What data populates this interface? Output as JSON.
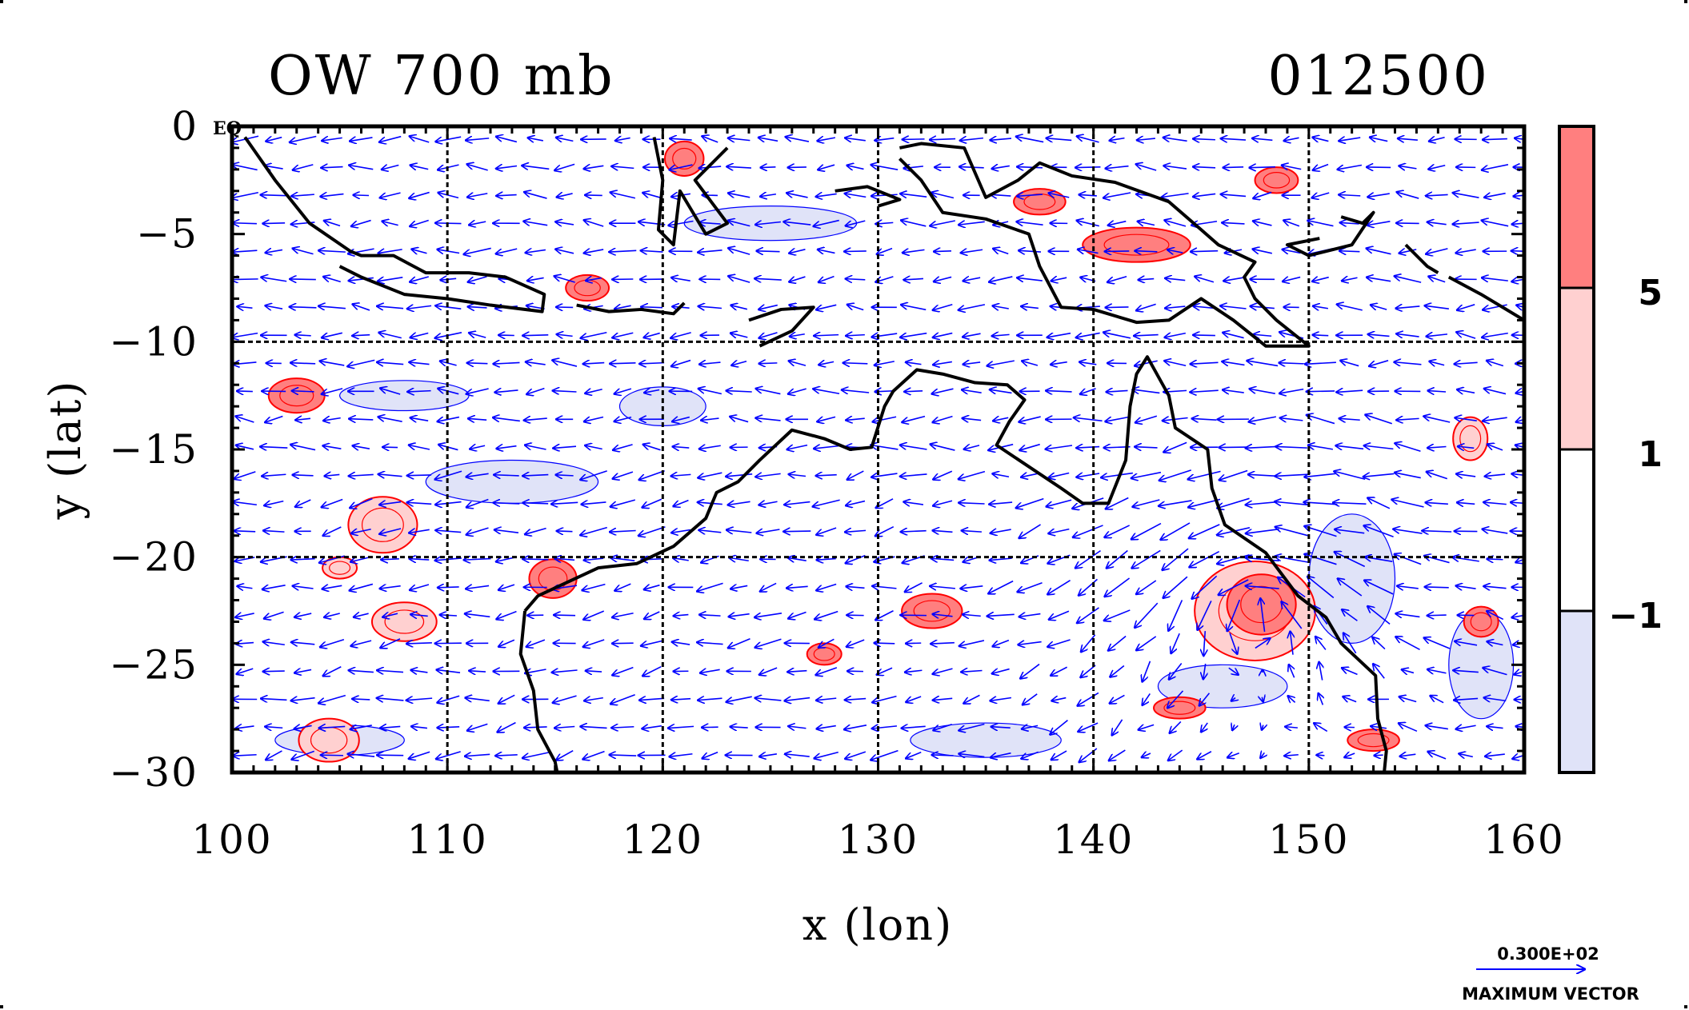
{
  "chart_data": {
    "type": "heatmap",
    "title": "OW 700 mb",
    "time_label": "012500",
    "xlabel": "x (lon)",
    "ylabel": "y (lat)",
    "xlim": [
      100,
      160
    ],
    "ylim": [
      -30,
      0
    ],
    "x_ticks": [
      100,
      110,
      120,
      130,
      140,
      150,
      160
    ],
    "y_ticks": [
      0,
      -5,
      -10,
      -15,
      -20,
      -25,
      -30
    ],
    "x_tick_labels": [
      "100",
      "110",
      "120",
      "130",
      "140",
      "150",
      "160"
    ],
    "y_tick_labels": [
      "0",
      "−5",
      "−10",
      "−15",
      "−20",
      "−25",
      "−30"
    ],
    "gridlines_x": [
      110,
      120,
      130,
      140,
      150
    ],
    "gridlines_y": [
      -10,
      -20
    ],
    "grid": true,
    "corner_label": "EQ",
    "colorbar": {
      "levels": [
        -1,
        1,
        5
      ],
      "labels": [
        "−1",
        "1",
        "5"
      ],
      "colors": [
        "#e0e3f8",
        "#ffffff",
        "#ffd0d0",
        "#ff7f7f"
      ]
    },
    "contour_colors": {
      "positive": "#ff0000",
      "negative": "#0000ff",
      "coast": "#000000"
    },
    "vector_color": "#0000ff",
    "vector_key": {
      "value": "0.300E+02",
      "label": "MAXIMUM VECTOR"
    },
    "positive_regions": [
      {
        "lon": 103,
        "lat": -12.5,
        "rx": 1.3,
        "ry": 0.8,
        "level": 5
      },
      {
        "lon": 104.5,
        "lat": -28.5,
        "rx": 1.4,
        "ry": 1.0,
        "level": 1
      },
      {
        "lon": 107,
        "lat": -18.5,
        "rx": 1.6,
        "ry": 1.3,
        "level": 1
      },
      {
        "lon": 108,
        "lat": -23,
        "rx": 1.5,
        "ry": 0.9,
        "level": 1
      },
      {
        "lon": 105,
        "lat": -20.5,
        "rx": 0.8,
        "ry": 0.5,
        "level": 1
      },
      {
        "lon": 114.9,
        "lat": -21,
        "rx": 1.1,
        "ry": 0.9,
        "level": 5
      },
      {
        "lon": 116.5,
        "lat": -7.5,
        "rx": 1.0,
        "ry": 0.6,
        "level": 5
      },
      {
        "lon": 121,
        "lat": -1.5,
        "rx": 0.9,
        "ry": 0.8,
        "level": 5
      },
      {
        "lon": 127.5,
        "lat": -24.5,
        "rx": 0.8,
        "ry": 0.5,
        "level": 5
      },
      {
        "lon": 132.5,
        "lat": -22.5,
        "rx": 1.4,
        "ry": 0.8,
        "level": 5
      },
      {
        "lon": 137.5,
        "lat": -3.5,
        "rx": 1.2,
        "ry": 0.6,
        "level": 5
      },
      {
        "lon": 142,
        "lat": -5.5,
        "rx": 2.5,
        "ry": 0.8,
        "level": 5
      },
      {
        "lon": 147.5,
        "lat": -22.5,
        "rx": 2.8,
        "ry": 2.3,
        "level": 1
      },
      {
        "lon": 147.8,
        "lat": -22.2,
        "rx": 1.6,
        "ry": 1.4,
        "level": 5
      },
      {
        "lon": 148.5,
        "lat": -2.5,
        "rx": 1.0,
        "ry": 0.6,
        "level": 5
      },
      {
        "lon": 157.5,
        "lat": -14.5,
        "rx": 0.8,
        "ry": 1.0,
        "level": 1
      },
      {
        "lon": 158,
        "lat": -23,
        "rx": 0.8,
        "ry": 0.7,
        "level": 5
      },
      {
        "lon": 144,
        "lat": -27,
        "rx": 1.2,
        "ry": 0.5,
        "level": 5
      },
      {
        "lon": 153,
        "lat": -28.5,
        "rx": 1.2,
        "ry": 0.5,
        "level": 5
      }
    ],
    "negative_regions": [
      {
        "lon": 108,
        "lat": -12.5,
        "rx": 3.0,
        "ry": 0.7
      },
      {
        "lon": 113,
        "lat": -16.5,
        "rx": 4.0,
        "ry": 1.0
      },
      {
        "lon": 120,
        "lat": -13,
        "rx": 2.0,
        "ry": 0.9
      },
      {
        "lon": 135,
        "lat": -28.5,
        "rx": 3.5,
        "ry": 0.8
      },
      {
        "lon": 146,
        "lat": -26,
        "rx": 3.0,
        "ry": 1.0
      },
      {
        "lon": 152,
        "lat": -21,
        "rx": 2.0,
        "ry": 3.0
      },
      {
        "lon": 158,
        "lat": -25,
        "rx": 1.5,
        "ry": 2.5
      },
      {
        "lon": 125,
        "lat": -4.5,
        "rx": 4.0,
        "ry": 0.8
      },
      {
        "lon": 105,
        "lat": -28.5,
        "rx": 3.0,
        "ry": 0.7
      }
    ],
    "vortex_center": {
      "lon": 147.5,
      "lat": -22.5
    },
    "coastlines": [
      [
        [
          100.6,
          -0.5
        ],
        [
          102,
          -2.5
        ],
        [
          103.6,
          -4.5
        ],
        [
          105.5,
          -5.8
        ],
        [
          106,
          -6
        ],
        [
          107.5,
          -6
        ],
        [
          109,
          -6.8
        ],
        [
          111,
          -6.8
        ],
        [
          112.7,
          -7
        ],
        [
          114.5,
          -7.8
        ],
        [
          114.4,
          -8.6
        ],
        [
          112,
          -8.3
        ],
        [
          110,
          -8
        ],
        [
          108,
          -7.8
        ],
        [
          106,
          -7
        ],
        [
          105,
          -6.5
        ]
      ],
      [
        [
          116,
          -8.3
        ],
        [
          117.5,
          -8.6
        ],
        [
          119,
          -8.5
        ],
        [
          120.5,
          -8.7
        ],
        [
          121,
          -8.2
        ]
      ],
      [
        [
          119.6,
          -0.5
        ],
        [
          120,
          -2.5
        ],
        [
          119.8,
          -4.8
        ],
        [
          120.5,
          -5.5
        ],
        [
          120.8,
          -3
        ],
        [
          122,
          -5
        ],
        [
          123,
          -4.5
        ],
        [
          121.5,
          -2.5
        ],
        [
          123,
          -1
        ]
      ],
      [
        [
          124,
          -9
        ],
        [
          125.5,
          -8.5
        ],
        [
          127,
          -8.4
        ],
        [
          126,
          -9.5
        ],
        [
          124.5,
          -10.2
        ]
      ],
      [
        [
          128,
          -3
        ],
        [
          129.5,
          -2.8
        ],
        [
          131,
          -3.4
        ],
        [
          130,
          -3.7
        ]
      ],
      [
        [
          131,
          -1
        ],
        [
          132,
          -0.8
        ],
        [
          134,
          -1
        ],
        [
          135,
          -3.3
        ],
        [
          136.5,
          -2.5
        ],
        [
          137.5,
          -1.7
        ],
        [
          139,
          -2.3
        ],
        [
          141,
          -2.6
        ],
        [
          143.5,
          -3.5
        ],
        [
          145,
          -4.8
        ],
        [
          145.8,
          -5.5
        ],
        [
          147.5,
          -6.3
        ],
        [
          147,
          -7
        ],
        [
          147.5,
          -8
        ],
        [
          148.5,
          -9
        ],
        [
          150,
          -10.2
        ],
        [
          148,
          -10.2
        ],
        [
          146.5,
          -9
        ],
        [
          145,
          -8
        ],
        [
          143.5,
          -9
        ],
        [
          142,
          -9.1
        ],
        [
          140,
          -8.5
        ],
        [
          138.5,
          -8.4
        ],
        [
          137.5,
          -6.5
        ],
        [
          137,
          -5
        ],
        [
          135,
          -4.3
        ],
        [
          133,
          -4
        ],
        [
          132,
          -2.5
        ],
        [
          131,
          -1.5
        ]
      ],
      [
        [
          151.5,
          -4.2
        ],
        [
          152.5,
          -4.5
        ],
        [
          153,
          -4
        ],
        [
          152,
          -5.5
        ],
        [
          150,
          -6
        ],
        [
          149,
          -5.5
        ],
        [
          150.5,
          -5.2
        ]
      ],
      [
        [
          154.5,
          -5.5
        ],
        [
          155.5,
          -6.5
        ],
        [
          156,
          -6.8
        ]
      ],
      [
        [
          156.5,
          -7
        ],
        [
          158,
          -7.8
        ],
        [
          160,
          -9
        ]
      ],
      [
        [
          113.6,
          -22.5
        ],
        [
          114.2,
          -21.8
        ],
        [
          115.5,
          -21.2
        ],
        [
          117,
          -20.5
        ],
        [
          118.8,
          -20.3
        ],
        [
          120.5,
          -19.5
        ],
        [
          122,
          -18.2
        ],
        [
          122.5,
          -17
        ],
        [
          123.5,
          -16.5
        ],
        [
          124.5,
          -15.5
        ],
        [
          126,
          -14.1
        ],
        [
          127.5,
          -14.5
        ],
        [
          128.7,
          -15
        ],
        [
          129.7,
          -14.9
        ],
        [
          130.3,
          -13
        ],
        [
          130.7,
          -12.3
        ],
        [
          131.8,
          -11.3
        ],
        [
          133,
          -11.5
        ],
        [
          134.5,
          -11.9
        ],
        [
          136,
          -12
        ],
        [
          136.8,
          -12.7
        ],
        [
          136.1,
          -13.7
        ],
        [
          135.5,
          -14.8
        ],
        [
          137,
          -15.8
        ],
        [
          138.5,
          -16.8
        ],
        [
          139.5,
          -17.5
        ],
        [
          140.7,
          -17.5
        ],
        [
          141.5,
          -15.5
        ],
        [
          141.7,
          -13
        ],
        [
          142,
          -11.5
        ],
        [
          142.5,
          -10.7
        ],
        [
          143.5,
          -12.5
        ],
        [
          143.8,
          -14
        ],
        [
          145.3,
          -15
        ],
        [
          145.5,
          -16.8
        ],
        [
          146.1,
          -18.5
        ],
        [
          148,
          -19.8
        ],
        [
          149.5,
          -21.8
        ],
        [
          150.8,
          -22.8
        ],
        [
          151.5,
          -24
        ],
        [
          153.1,
          -25.5
        ],
        [
          153.2,
          -27.5
        ],
        [
          153.6,
          -29
        ],
        [
          153.5,
          -30
        ]
      ],
      [
        [
          113.6,
          -22.5
        ],
        [
          113.4,
          -24.5
        ],
        [
          114,
          -26.2
        ],
        [
          114.2,
          -28
        ],
        [
          115,
          -29.5
        ],
        [
          115.1,
          -30
        ]
      ]
    ]
  }
}
